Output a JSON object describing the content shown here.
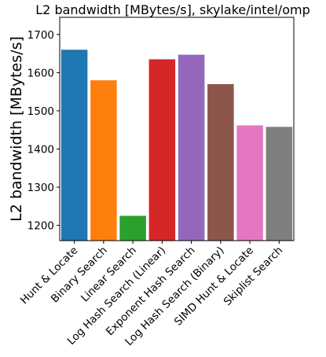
{
  "chart_data": {
    "type": "bar",
    "title": "L2 bandwidth [MBytes/s], skylake/intel/omp",
    "xlabel": "",
    "ylabel": "L2 bandwidth [MBytes/s]",
    "ylim": [
      1160,
      1745
    ],
    "yticks": [
      1200,
      1300,
      1400,
      1500,
      1600,
      1700
    ],
    "categories": [
      "Hunt & Locate",
      "Binary Search",
      "Linear Search",
      "Log Hash Search (Linear)",
      "Exponent Hash Search",
      "Log Hash Search (Binary)",
      "SIMD Hunt & Locate",
      "Skiplist Search"
    ],
    "values": [
      1660,
      1580,
      1225,
      1635,
      1647,
      1570,
      1462,
      1458
    ],
    "colors": [
      "#1f77b4",
      "#ff7f0e",
      "#2ca02c",
      "#d62728",
      "#9467bd",
      "#8c564b",
      "#e377c2",
      "#7f7f7f"
    ],
    "grid": false,
    "legend": "none"
  }
}
